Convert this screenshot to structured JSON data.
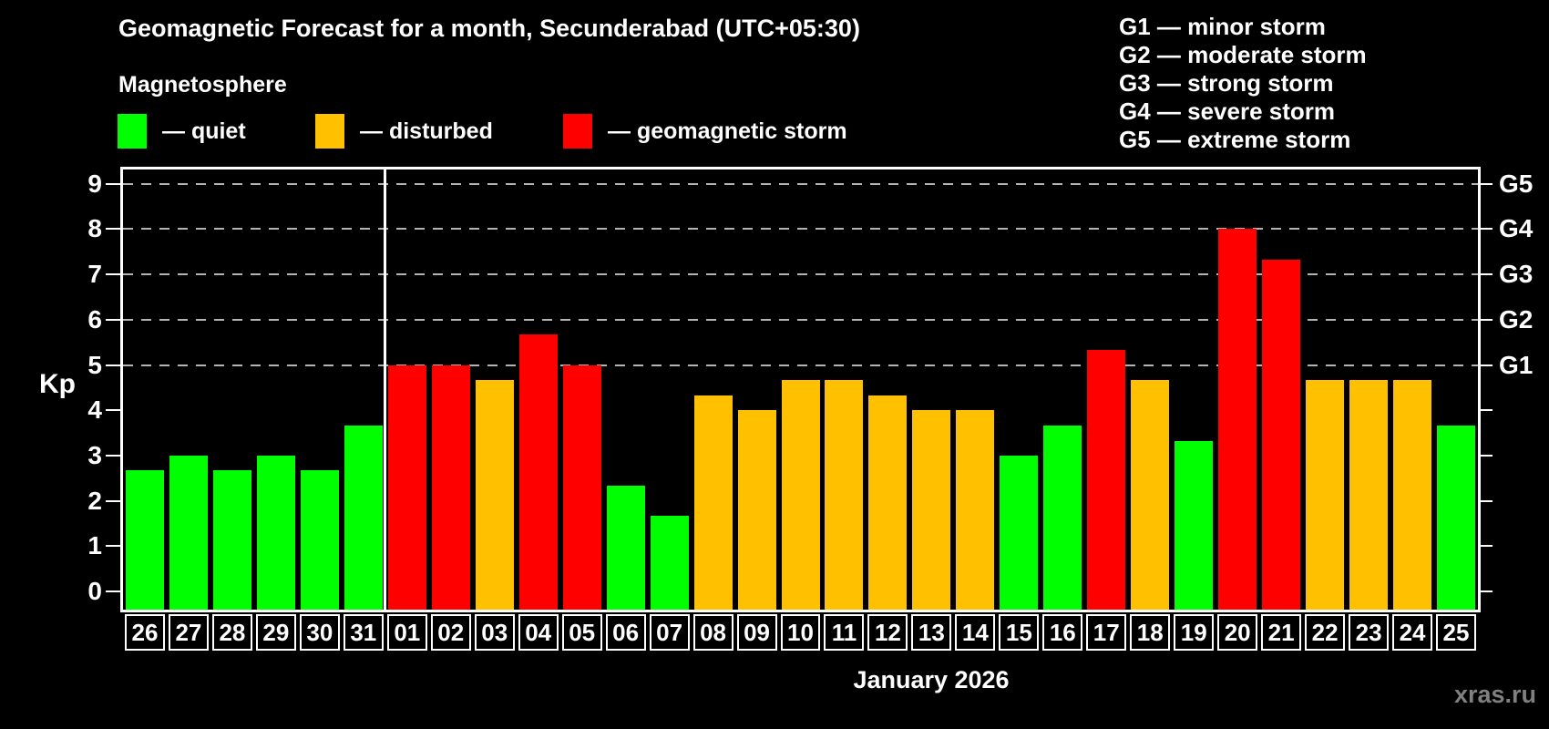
{
  "header": {
    "title": "Geomagnetic Forecast for a month, Secunderabad (UTC+05:30)",
    "subtitle": "Magnetosphere",
    "watermark": "xras.ru"
  },
  "legend": {
    "items": [
      {
        "key": "quiet",
        "label": "— quiet",
        "color": "#00ff00"
      },
      {
        "key": "disturbed",
        "label": "— disturbed",
        "color": "#ffc000"
      },
      {
        "key": "storm",
        "label": "— geomagnetic storm",
        "color": "#ff0000"
      }
    ]
  },
  "g_legend": [
    "G1 — minor storm",
    "G2 — moderate storm",
    "G3 — strong storm",
    "G4 — severe storm",
    "G5 — extreme storm"
  ],
  "x_axis": {
    "month_label": "January 2026"
  },
  "chart_data": {
    "type": "bar",
    "title": "Geomagnetic Forecast for a month, Secunderabad (UTC+05:30)",
    "xlabel": "January 2026",
    "ylabel": "Kp",
    "ylim": [
      0,
      9
    ],
    "yticks": [
      0,
      1,
      2,
      3,
      4,
      5,
      6,
      7,
      8,
      9
    ],
    "grid_levels": [
      5,
      6,
      7,
      8,
      9
    ],
    "grid": "dashed-horizontal-at-storm-levels",
    "legend_position": "top-left",
    "right_axis_labels": [
      {
        "label": "G1",
        "value": 5
      },
      {
        "label": "G2",
        "value": 6
      },
      {
        "label": "G3",
        "value": 7
      },
      {
        "label": "G4",
        "value": 8
      },
      {
        "label": "G5",
        "value": 9
      }
    ],
    "month_separator_after": "31",
    "categories": [
      "26",
      "27",
      "28",
      "29",
      "30",
      "31",
      "01",
      "02",
      "03",
      "04",
      "05",
      "06",
      "07",
      "08",
      "09",
      "10",
      "11",
      "12",
      "13",
      "14",
      "15",
      "16",
      "17",
      "18",
      "19",
      "20",
      "21",
      "22",
      "23",
      "24",
      "25"
    ],
    "values": [
      2.67,
      3.0,
      2.67,
      3.0,
      2.67,
      3.67,
      5.0,
      5.0,
      4.67,
      5.67,
      5.0,
      2.33,
      1.67,
      4.33,
      4.0,
      4.67,
      4.67,
      4.33,
      4.0,
      4.0,
      3.0,
      3.67,
      5.33,
      4.67,
      3.33,
      8.0,
      7.33,
      4.67,
      4.67,
      4.67,
      3.67
    ],
    "statuses": [
      "quiet",
      "quiet",
      "quiet",
      "quiet",
      "quiet",
      "quiet",
      "storm",
      "storm",
      "disturbed",
      "storm",
      "storm",
      "quiet",
      "quiet",
      "disturbed",
      "disturbed",
      "disturbed",
      "disturbed",
      "disturbed",
      "disturbed",
      "disturbed",
      "quiet",
      "quiet",
      "storm",
      "disturbed",
      "quiet",
      "storm",
      "storm",
      "disturbed",
      "disturbed",
      "disturbed",
      "quiet"
    ],
    "colors": {
      "quiet": "#00ff00",
      "disturbed": "#ffc000",
      "storm": "#ff0000"
    }
  }
}
